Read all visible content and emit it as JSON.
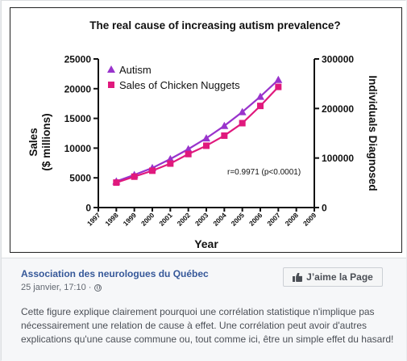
{
  "chart_data": {
    "type": "line",
    "title": "The real cause of increasing autism prevalence?",
    "xlabel": "Year",
    "ylabel_left": "Sales",
    "ylabel_left_unit": "($ millions)",
    "ylabel_right": "Individuals Diagnosed",
    "x_ticks": [
      "1997",
      "1998",
      "1999",
      "2000",
      "2001",
      "2002",
      "2003",
      "2004",
      "2005",
      "2006",
      "2007",
      "2008",
      "2009"
    ],
    "left_axis": {
      "min": 0,
      "max": 25000,
      "ticks": [
        "0",
        "5000",
        "10000",
        "15000",
        "20000",
        "25000"
      ]
    },
    "right_axis": {
      "min": 0,
      "max": 300000,
      "ticks": [
        "0",
        "100000",
        "200000",
        "300000"
      ]
    },
    "series": [
      {
        "name": "Autism",
        "axis": "right",
        "color": "#9933cc",
        "marker": "triangle",
        "x": [
          1998,
          1999,
          2000,
          2001,
          2002,
          2003,
          2004,
          2005,
          2006,
          2007
        ],
        "values": [
          53000,
          66000,
          80000,
          98000,
          118000,
          140000,
          165000,
          193000,
          224000,
          258000
        ]
      },
      {
        "name": "Sales of Chicken Nuggets",
        "axis": "left",
        "color": "#e0197d",
        "marker": "square",
        "x": [
          1998,
          1999,
          2000,
          2001,
          2002,
          2003,
          2004,
          2005,
          2006,
          2007
        ],
        "values": [
          4200,
          5200,
          6200,
          7400,
          9000,
          10400,
          12100,
          14200,
          17100,
          20300
        ]
      }
    ],
    "annotation": "r=0.9971 (p<0.0001)",
    "legend_position": "top-left"
  },
  "post": {
    "page_name": "Association des neurologues du Québec",
    "timestamp": "25 janvier, 17:10 ·",
    "like_button_label": "J’aime la Page",
    "description": "Cette figure explique clairement pourquoi une corrélation statistique n'implique pas nécessairement une relation de cause à effet. Une corrélation peut avoir d'autres explications qu'une cause commune ou, tout comme ici, être un simple effet du hasard!"
  }
}
